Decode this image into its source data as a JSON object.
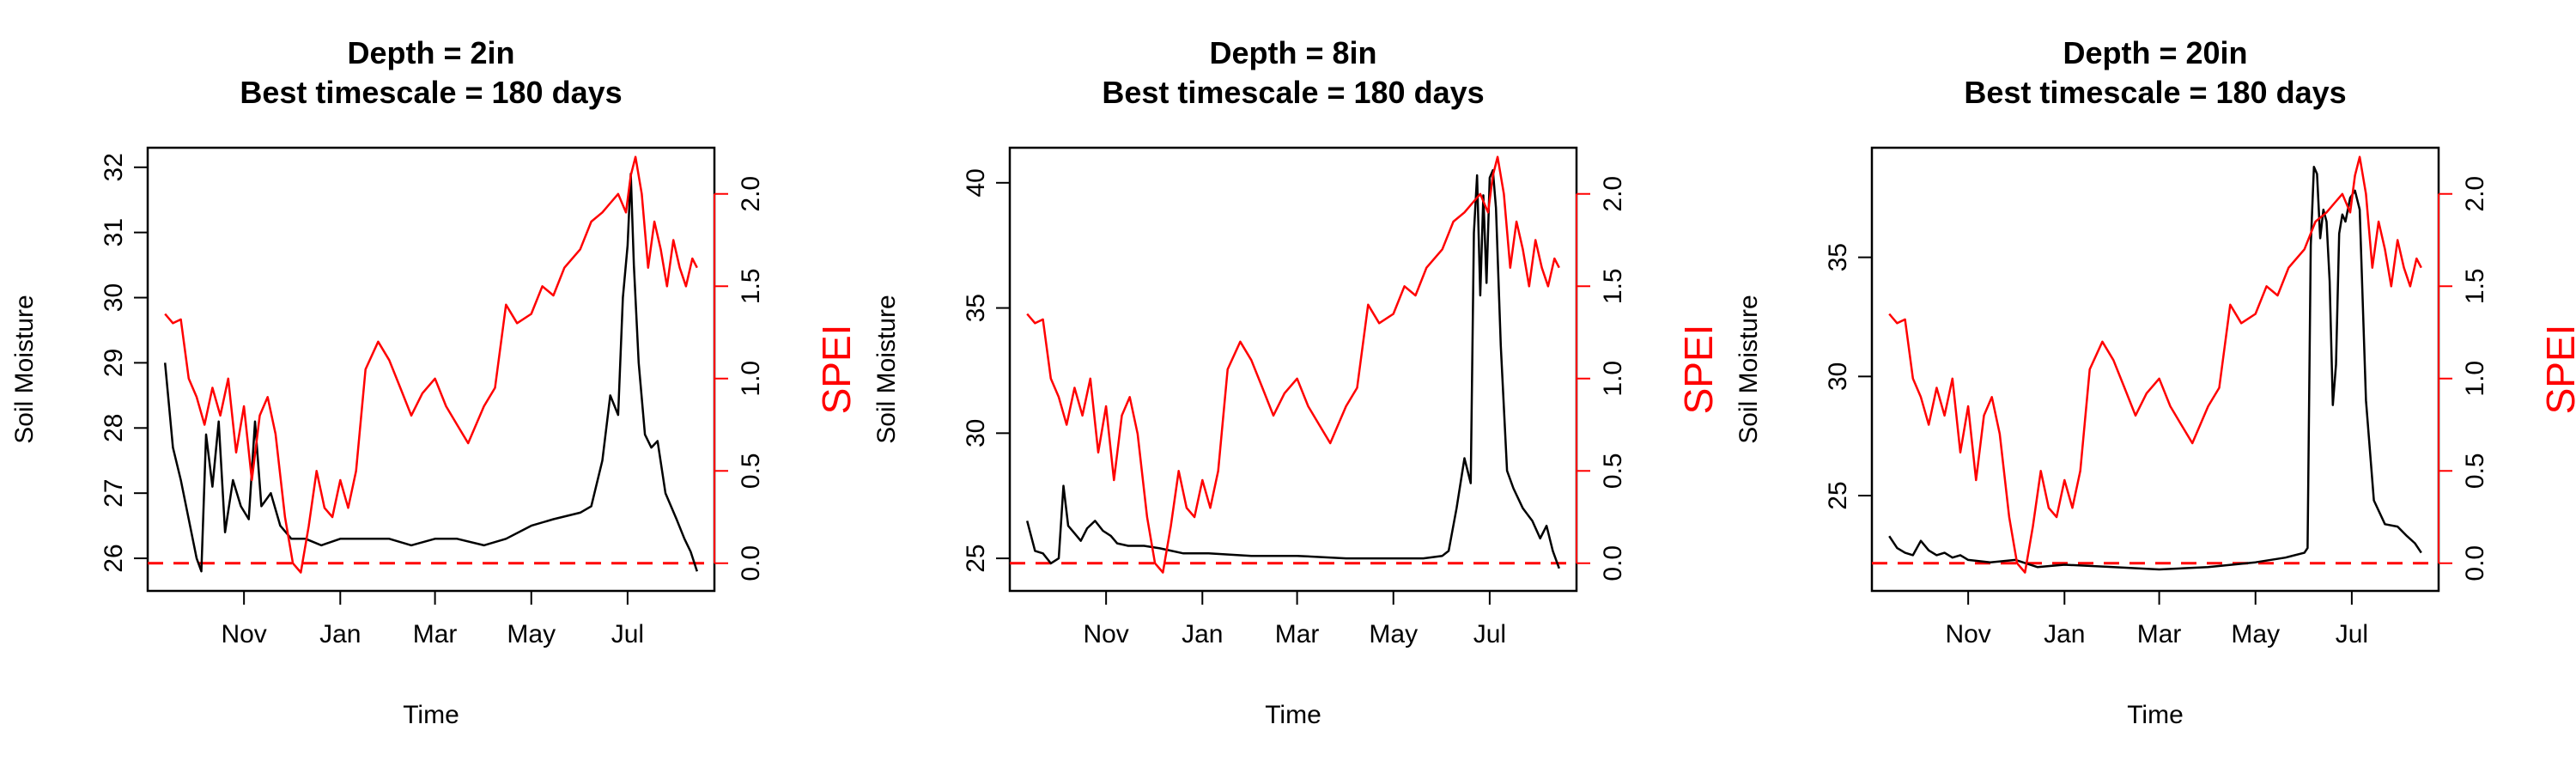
{
  "colors": {
    "moisture": "#000000",
    "spei": "#ff0000",
    "zero_line": "#ff0000"
  },
  "chart_data": [
    {
      "type": "line",
      "title": "Depth = 2in",
      "subtitle": "Best timescale = 180 days",
      "xlabel": "Time",
      "ylabel": "Soil Moisture",
      "y2label": "SPEI",
      "x_ticks": [
        "Nov",
        "Jan",
        "Mar",
        "May",
        "Jul"
      ],
      "ylim": [
        25.5,
        32.3
      ],
      "y_ticks": [
        "26",
        "27",
        "28",
        "29",
        "30",
        "31",
        "32"
      ],
      "y2lim": [
        -0.15,
        2.25
      ],
      "y2_ticks": [
        "0.0",
        "0.5",
        "1.0",
        "1.5",
        "2.0"
      ],
      "reference_line": {
        "axis": "y2",
        "value": 0,
        "style": "dashed"
      },
      "series": [
        {
          "axis": "y",
          "x": [
            "2023-09-12",
            "2023-09-17",
            "2023-09-22",
            "2023-09-27",
            "2023-10-02",
            "2023-10-05",
            "2023-10-08",
            "2023-10-12",
            "2023-10-16",
            "2023-10-20",
            "2023-10-25",
            "2023-10-30",
            "2023-11-04",
            "2023-11-08",
            "2023-11-12",
            "2023-11-18",
            "2023-11-24",
            "2023-12-01",
            "2023-12-10",
            "2023-12-20",
            "2024-01-01",
            "2024-01-15",
            "2024-02-01",
            "2024-02-15",
            "2024-03-01",
            "2024-03-15",
            "2024-04-01",
            "2024-04-15",
            "2024-05-01",
            "2024-05-15",
            "2024-06-01",
            "2024-06-08",
            "2024-06-15",
            "2024-06-20",
            "2024-06-25",
            "2024-06-28",
            "2024-07-01",
            "2024-07-03",
            "2024-07-05",
            "2024-07-08",
            "2024-07-12",
            "2024-07-16",
            "2024-07-20",
            "2024-07-25",
            "2024-08-01",
            "2024-08-06",
            "2024-08-10",
            "2024-08-14"
          ],
          "values": [
            29.0,
            27.7,
            27.2,
            26.6,
            26.0,
            25.8,
            27.9,
            27.1,
            28.1,
            26.4,
            27.2,
            26.8,
            26.6,
            28.1,
            26.8,
            27.0,
            26.5,
            26.3,
            26.3,
            26.2,
            26.3,
            26.3,
            26.3,
            26.2,
            26.3,
            26.3,
            26.2,
            26.3,
            26.5,
            26.6,
            26.7,
            26.8,
            27.5,
            28.5,
            28.2,
            30.0,
            30.8,
            31.9,
            30.5,
            29.0,
            27.9,
            27.7,
            27.8,
            27.0,
            26.6,
            26.3,
            26.1,
            25.8
          ]
        },
        {
          "axis": "y2",
          "x": [
            "2023-09-12",
            "2023-09-17",
            "2023-09-22",
            "2023-09-27",
            "2023-10-02",
            "2023-10-07",
            "2023-10-12",
            "2023-10-17",
            "2023-10-22",
            "2023-10-27",
            "2023-11-01",
            "2023-11-06",
            "2023-11-11",
            "2023-11-16",
            "2023-11-21",
            "2023-11-27",
            "2023-12-02",
            "2023-12-07",
            "2023-12-12",
            "2023-12-17",
            "2023-12-22",
            "2023-12-27",
            "2024-01-01",
            "2024-01-06",
            "2024-01-11",
            "2024-01-17",
            "2024-01-25",
            "2024-02-01",
            "2024-02-08",
            "2024-02-15",
            "2024-02-22",
            "2024-03-01",
            "2024-03-08",
            "2024-03-15",
            "2024-03-22",
            "2024-04-01",
            "2024-04-08",
            "2024-04-15",
            "2024-04-22",
            "2024-05-01",
            "2024-05-08",
            "2024-05-15",
            "2024-05-22",
            "2024-06-01",
            "2024-06-08",
            "2024-06-15",
            "2024-06-20",
            "2024-06-25",
            "2024-06-30",
            "2024-07-03",
            "2024-07-06",
            "2024-07-10",
            "2024-07-14",
            "2024-07-18",
            "2024-07-22",
            "2024-07-26",
            "2024-07-30",
            "2024-08-03",
            "2024-08-07",
            "2024-08-11",
            "2024-08-14"
          ],
          "values": [
            1.35,
            1.3,
            1.32,
            1.0,
            0.9,
            0.75,
            0.95,
            0.8,
            1.0,
            0.6,
            0.85,
            0.45,
            0.8,
            0.9,
            0.7,
            0.25,
            0.0,
            -0.05,
            0.2,
            0.5,
            0.3,
            0.25,
            0.45,
            0.3,
            0.5,
            1.05,
            1.2,
            1.1,
            0.95,
            0.8,
            0.92,
            1.0,
            0.85,
            0.75,
            0.65,
            0.85,
            0.95,
            1.4,
            1.3,
            1.35,
            1.5,
            1.45,
            1.6,
            1.7,
            1.85,
            1.9,
            1.95,
            2.0,
            1.9,
            2.1,
            2.2,
            2.0,
            1.6,
            1.85,
            1.7,
            1.5,
            1.75,
            1.6,
            1.5,
            1.65,
            1.6
          ]
        }
      ]
    },
    {
      "type": "line",
      "title": "Depth = 8in",
      "subtitle": "Best timescale = 180 days",
      "xlabel": "Time",
      "ylabel": "Soil Moisture",
      "y2label": "SPEI",
      "x_ticks": [
        "Nov",
        "Jan",
        "Mar",
        "May",
        "Jul"
      ],
      "ylim": [
        23.7,
        41.4
      ],
      "y_ticks": [
        "25",
        "30",
        "35",
        "40"
      ],
      "y2lim": [
        -0.15,
        2.25
      ],
      "y2_ticks": [
        "0.0",
        "0.5",
        "1.0",
        "1.5",
        "2.0"
      ],
      "reference_line": {
        "axis": "y2",
        "value": 0,
        "style": "dashed"
      },
      "series": [
        {
          "axis": "y",
          "x": [
            "2023-09-12",
            "2023-09-17",
            "2023-09-22",
            "2023-09-27",
            "2023-10-02",
            "2023-10-05",
            "2023-10-08",
            "2023-10-12",
            "2023-10-16",
            "2023-10-20",
            "2023-10-25",
            "2023-10-30",
            "2023-11-04",
            "2023-11-08",
            "2023-11-15",
            "2023-11-25",
            "2023-12-05",
            "2023-12-20",
            "2024-01-05",
            "2024-02-01",
            "2024-03-01",
            "2024-04-01",
            "2024-05-01",
            "2024-05-20",
            "2024-06-01",
            "2024-06-05",
            "2024-06-10",
            "2024-06-15",
            "2024-06-19",
            "2024-06-21",
            "2024-06-23",
            "2024-06-25",
            "2024-06-27",
            "2024-06-29",
            "2024-07-01",
            "2024-07-03",
            "2024-07-05",
            "2024-07-08",
            "2024-07-12",
            "2024-07-16",
            "2024-07-22",
            "2024-07-28",
            "2024-08-02",
            "2024-08-06",
            "2024-08-10",
            "2024-08-14"
          ],
          "values": [
            26.5,
            25.3,
            25.2,
            24.8,
            25.0,
            27.9,
            26.3,
            26.0,
            25.7,
            26.2,
            26.5,
            26.1,
            25.9,
            25.6,
            25.5,
            25.5,
            25.4,
            25.2,
            25.2,
            25.1,
            25.1,
            25.0,
            25.0,
            25.0,
            25.1,
            25.3,
            27.0,
            29.0,
            28.0,
            38.0,
            40.3,
            35.5,
            39.5,
            36.0,
            40.2,
            40.5,
            39.0,
            33.5,
            28.5,
            27.8,
            27.0,
            26.5,
            25.8,
            26.3,
            25.3,
            24.6
          ]
        },
        {
          "axis": "y2",
          "x": [
            "2023-09-12",
            "2023-09-17",
            "2023-09-22",
            "2023-09-27",
            "2023-10-02",
            "2023-10-07",
            "2023-10-12",
            "2023-10-17",
            "2023-10-22",
            "2023-10-27",
            "2023-11-01",
            "2023-11-06",
            "2023-11-11",
            "2023-11-16",
            "2023-11-21",
            "2023-11-27",
            "2023-12-02",
            "2023-12-07",
            "2023-12-12",
            "2023-12-17",
            "2023-12-22",
            "2023-12-27",
            "2024-01-01",
            "2024-01-06",
            "2024-01-11",
            "2024-01-17",
            "2024-01-25",
            "2024-02-01",
            "2024-02-08",
            "2024-02-15",
            "2024-02-22",
            "2024-03-01",
            "2024-03-08",
            "2024-03-15",
            "2024-03-22",
            "2024-04-01",
            "2024-04-08",
            "2024-04-15",
            "2024-04-22",
            "2024-05-01",
            "2024-05-08",
            "2024-05-15",
            "2024-05-22",
            "2024-06-01",
            "2024-06-08",
            "2024-06-15",
            "2024-06-20",
            "2024-06-25",
            "2024-06-30",
            "2024-07-03",
            "2024-07-06",
            "2024-07-10",
            "2024-07-14",
            "2024-07-18",
            "2024-07-22",
            "2024-07-26",
            "2024-07-30",
            "2024-08-03",
            "2024-08-07",
            "2024-08-11",
            "2024-08-14"
          ],
          "values": [
            1.35,
            1.3,
            1.32,
            1.0,
            0.9,
            0.75,
            0.95,
            0.8,
            1.0,
            0.6,
            0.85,
            0.45,
            0.8,
            0.9,
            0.7,
            0.25,
            0.0,
            -0.05,
            0.2,
            0.5,
            0.3,
            0.25,
            0.45,
            0.3,
            0.5,
            1.05,
            1.2,
            1.1,
            0.95,
            0.8,
            0.92,
            1.0,
            0.85,
            0.75,
            0.65,
            0.85,
            0.95,
            1.4,
            1.3,
            1.35,
            1.5,
            1.45,
            1.6,
            1.7,
            1.85,
            1.9,
            1.95,
            2.0,
            1.9,
            2.1,
            2.2,
            2.0,
            1.6,
            1.85,
            1.7,
            1.5,
            1.75,
            1.6,
            1.5,
            1.65,
            1.6
          ]
        }
      ]
    },
    {
      "type": "line",
      "title": "Depth = 20in",
      "subtitle": "Best timescale = 180 days",
      "xlabel": "Time",
      "ylabel": "Soil Moisture",
      "y2label": "SPEI",
      "x_ticks": [
        "Nov",
        "Jan",
        "Mar",
        "May",
        "Jul"
      ],
      "ylim": [
        21.0,
        39.6
      ],
      "y_ticks": [
        "25",
        "30",
        "35"
      ],
      "y2lim": [
        -0.15,
        2.25
      ],
      "y2_ticks": [
        "0.0",
        "0.5",
        "1.0",
        "1.5",
        "2.0"
      ],
      "reference_line": {
        "axis": "y2",
        "value": 0,
        "style": "dashed"
      },
      "series": [
        {
          "axis": "y",
          "x": [
            "2023-09-12",
            "2023-09-17",
            "2023-09-22",
            "2023-09-27",
            "2023-10-02",
            "2023-10-07",
            "2023-10-12",
            "2023-10-17",
            "2023-10-22",
            "2023-10-27",
            "2023-11-01",
            "2023-11-15",
            "2023-12-01",
            "2023-12-15",
            "2024-01-01",
            "2024-02-01",
            "2024-03-01",
            "2024-04-01",
            "2024-05-01",
            "2024-05-20",
            "2024-06-01",
            "2024-06-03",
            "2024-06-05",
            "2024-06-07",
            "2024-06-09",
            "2024-06-11",
            "2024-06-13",
            "2024-06-15",
            "2024-06-17",
            "2024-06-19",
            "2024-06-21",
            "2024-06-23",
            "2024-06-25",
            "2024-06-27",
            "2024-06-30",
            "2024-07-03",
            "2024-07-06",
            "2024-07-10",
            "2024-07-15",
            "2024-07-22",
            "2024-07-30",
            "2024-08-05",
            "2024-08-10",
            "2024-08-14"
          ],
          "values": [
            23.3,
            22.8,
            22.6,
            22.5,
            23.1,
            22.7,
            22.5,
            22.6,
            22.4,
            22.5,
            22.3,
            22.2,
            22.3,
            22.0,
            22.1,
            22.0,
            21.9,
            22.0,
            22.2,
            22.4,
            22.6,
            22.8,
            35.5,
            38.8,
            38.5,
            35.8,
            37.0,
            36.5,
            34.0,
            28.8,
            30.5,
            36.0,
            36.8,
            36.5,
            37.5,
            37.8,
            37.0,
            29.0,
            24.8,
            23.8,
            23.7,
            23.3,
            23.0,
            22.6
          ]
        },
        {
          "axis": "y2",
          "x": [
            "2023-09-12",
            "2023-09-17",
            "2023-09-22",
            "2023-09-27",
            "2023-10-02",
            "2023-10-07",
            "2023-10-12",
            "2023-10-17",
            "2023-10-22",
            "2023-10-27",
            "2023-11-01",
            "2023-11-06",
            "2023-11-11",
            "2023-11-16",
            "2023-11-21",
            "2023-11-27",
            "2023-12-02",
            "2023-12-07",
            "2023-12-12",
            "2023-12-17",
            "2023-12-22",
            "2023-12-27",
            "2024-01-01",
            "2024-01-06",
            "2024-01-11",
            "2024-01-17",
            "2024-01-25",
            "2024-02-01",
            "2024-02-08",
            "2024-02-15",
            "2024-02-22",
            "2024-03-01",
            "2024-03-08",
            "2024-03-15",
            "2024-03-22",
            "2024-04-01",
            "2024-04-08",
            "2024-04-15",
            "2024-04-22",
            "2024-05-01",
            "2024-05-08",
            "2024-05-15",
            "2024-05-22",
            "2024-06-01",
            "2024-06-08",
            "2024-06-15",
            "2024-06-20",
            "2024-06-25",
            "2024-06-30",
            "2024-07-03",
            "2024-07-06",
            "2024-07-10",
            "2024-07-14",
            "2024-07-18",
            "2024-07-22",
            "2024-07-26",
            "2024-07-30",
            "2024-08-03",
            "2024-08-07",
            "2024-08-11",
            "2024-08-14"
          ],
          "values": [
            1.35,
            1.3,
            1.32,
            1.0,
            0.9,
            0.75,
            0.95,
            0.8,
            1.0,
            0.6,
            0.85,
            0.45,
            0.8,
            0.9,
            0.7,
            0.25,
            0.0,
            -0.05,
            0.2,
            0.5,
            0.3,
            0.25,
            0.45,
            0.3,
            0.5,
            1.05,
            1.2,
            1.1,
            0.95,
            0.8,
            0.92,
            1.0,
            0.85,
            0.75,
            0.65,
            0.85,
            0.95,
            1.4,
            1.3,
            1.35,
            1.5,
            1.45,
            1.6,
            1.7,
            1.85,
            1.9,
            1.95,
            2.0,
            1.9,
            2.1,
            2.2,
            2.0,
            1.6,
            1.85,
            1.7,
            1.5,
            1.75,
            1.6,
            1.5,
            1.65,
            1.6
          ]
        }
      ]
    }
  ]
}
